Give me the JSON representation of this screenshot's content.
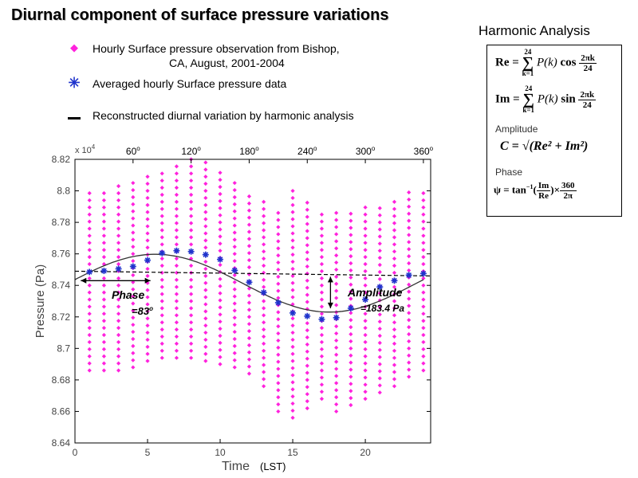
{
  "title": "Diurnal component of surface pressure variations",
  "legend": {
    "obs": {
      "marker": "diamond",
      "color": "#ff22dd",
      "line1": "Hourly Surface pressure observation from Bishop,",
      "line2": "CA, August, 2001-2004"
    },
    "avg": {
      "marker": "asterisk",
      "color": "#1f33cc",
      "text": "Averaged hourly Surface pressure data"
    },
    "recon": {
      "marker": "dash",
      "color": "#000000",
      "text": "Reconstructed diurnal variation by harmonic analysis"
    }
  },
  "harmonic": {
    "title": "Harmonic Analysis",
    "amplitude_label": "Amplitude",
    "phase_label": "Phase",
    "re_lhs": "Re",
    "im_lhs": "Im",
    "sum_upper": "24",
    "sum_lower": "k=1",
    "pk": "P(k)",
    "cos": "cos",
    "sin": "sin",
    "frac_num": "2πk",
    "frac_den": "24",
    "c_formula": "C = √(Re² + Im²)",
    "psi_lhs": "ψ = tan",
    "psi_exp": "−1",
    "psi_ratio_num": "Im",
    "psi_ratio_den": "Re",
    "psi_times": "×",
    "psi_num": "360",
    "psi_den": "2π"
  },
  "chart_data": {
    "type": "scatter",
    "xlabel": "Time",
    "xlabel_unit": "(LST)",
    "ylabel": "Pressure (Pa)",
    "y_scale_label": "x 10",
    "y_scale_exp": "4",
    "xlim": [
      0,
      24.5
    ],
    "ylim": [
      8.64,
      8.82
    ],
    "x_ticks": [
      0,
      5,
      10,
      15,
      20
    ],
    "y_ticks": [
      8.64,
      8.66,
      8.68,
      8.7,
      8.72,
      8.74,
      8.76,
      8.78,
      8.8,
      8.82
    ],
    "top_axis": {
      "positions": [
        4,
        8,
        12,
        16,
        20,
        24
      ],
      "labels": [
        "60",
        "120",
        "180",
        "240",
        "300",
        "360"
      ],
      "degree_mark": "o"
    },
    "observations": {
      "hours": [
        1,
        2,
        3,
        4,
        5,
        6,
        7,
        8,
        9,
        10,
        11,
        12,
        13,
        14,
        15,
        16,
        17,
        18,
        19,
        20,
        21,
        22,
        23,
        24
      ],
      "min": [
        8.686,
        8.686,
        8.686,
        8.688,
        8.692,
        8.694,
        8.694,
        8.694,
        8.692,
        8.69,
        8.688,
        8.684,
        8.676,
        8.66,
        8.656,
        8.662,
        8.668,
        8.66,
        8.664,
        8.668,
        8.672,
        8.676,
        8.682,
        8.686
      ],
      "max": [
        8.802,
        8.802,
        8.805,
        8.808,
        8.812,
        8.815,
        8.818,
        8.82,
        8.818,
        8.812,
        8.806,
        8.8,
        8.796,
        8.79,
        8.8,
        8.795,
        8.788,
        8.788,
        8.788,
        8.79,
        8.792,
        8.796,
        8.8,
        8.802
      ]
    },
    "averages": {
      "hours": [
        1,
        2,
        3,
        4,
        5,
        6,
        7,
        8,
        9,
        10,
        11,
        12,
        13,
        14,
        15,
        16,
        17,
        18,
        19,
        20,
        21,
        22,
        23,
        24
      ],
      "values": [
        8.7485,
        8.7492,
        8.7505,
        8.752,
        8.756,
        8.7605,
        8.762,
        8.7615,
        8.7595,
        8.7565,
        8.7495,
        8.742,
        8.7355,
        8.729,
        8.7225,
        8.7205,
        8.7185,
        8.7195,
        8.7255,
        8.731,
        8.739,
        8.743,
        8.7465,
        8.7475
      ]
    },
    "reconstructed": {
      "mean": 8.7414,
      "amplitude": 0.01834,
      "peak_hour": 5.53,
      "period": 24
    },
    "mean_line": {
      "y_start": 8.749,
      "y_end": 8.746
    },
    "phase_annotation": {
      "label": "Phase",
      "value": "=83",
      "degree_mark": "o",
      "from_hour": 0.4,
      "to_hour": 5.2,
      "at": 8.743
    },
    "amplitude_annotation": {
      "label": "Amplitude",
      "value": "=183.4 Pa",
      "at_hour": 17.6,
      "from": 8.7455,
      "to": 8.7255
    }
  }
}
